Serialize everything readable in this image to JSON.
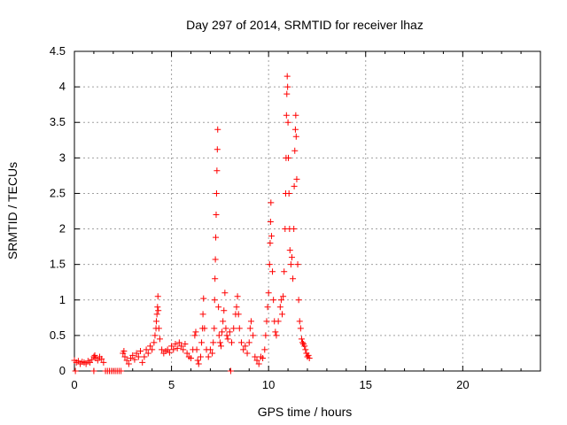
{
  "chart_data": {
    "type": "scatter",
    "title": "Day 297 of 2014, SRMTID for receiver lhaz",
    "xlabel": "GPS time / hours",
    "ylabel": "SRMTID / TECUs",
    "xlim": [
      0,
      24
    ],
    "ylim": [
      0,
      4.5
    ],
    "x_ticks": [
      0,
      5,
      10,
      15,
      20
    ],
    "y_ticks": [
      0,
      0.5,
      1,
      1.5,
      2,
      2.5,
      3,
      3.5,
      4,
      4.5
    ],
    "x_tick_labels": [
      "0",
      "5",
      "10",
      "15",
      "20"
    ],
    "y_tick_labels": [
      "0",
      "0.5",
      "1",
      "1.5",
      "2",
      "2.5",
      "3",
      "3.5",
      "4",
      "4.5"
    ],
    "grid": true,
    "marker": "+",
    "series": [
      {
        "name": "SRMTID",
        "color": "#ff0000",
        "points": [
          [
            0.0,
            0.15
          ],
          [
            0.1,
            0.12
          ],
          [
            0.2,
            0.14
          ],
          [
            0.3,
            0.1
          ],
          [
            0.4,
            0.13
          ],
          [
            0.5,
            0.12
          ],
          [
            0.6,
            0.1
          ],
          [
            0.7,
            0.14
          ],
          [
            0.8,
            0.12
          ],
          [
            0.9,
            0.16
          ],
          [
            1.0,
            0.2
          ],
          [
            1.05,
            0.22
          ],
          [
            1.1,
            0.18
          ],
          [
            1.2,
            0.15
          ],
          [
            1.3,
            0.2
          ],
          [
            1.4,
            0.17
          ],
          [
            1.5,
            0.12
          ],
          [
            0.05,
            0.0
          ],
          [
            1.0,
            0.0
          ],
          [
            1.6,
            0.0
          ],
          [
            1.7,
            0.0
          ],
          [
            1.8,
            0.0
          ],
          [
            1.9,
            0.0
          ],
          [
            2.0,
            0.0
          ],
          [
            2.1,
            0.0
          ],
          [
            2.2,
            0.0
          ],
          [
            2.3,
            0.0
          ],
          [
            2.4,
            0.0
          ],
          [
            2.5,
            0.25
          ],
          [
            2.55,
            0.28
          ],
          [
            2.6,
            0.2
          ],
          [
            2.7,
            0.15
          ],
          [
            2.8,
            0.1
          ],
          [
            2.9,
            0.18
          ],
          [
            3.0,
            0.22
          ],
          [
            3.1,
            0.16
          ],
          [
            3.2,
            0.25
          ],
          [
            3.3,
            0.2
          ],
          [
            3.4,
            0.28
          ],
          [
            3.5,
            0.12
          ],
          [
            3.6,
            0.2
          ],
          [
            3.7,
            0.3
          ],
          [
            3.8,
            0.25
          ],
          [
            3.9,
            0.35
          ],
          [
            4.0,
            0.3
          ],
          [
            4.1,
            0.4
          ],
          [
            4.15,
            0.5
          ],
          [
            4.2,
            0.6
          ],
          [
            4.22,
            0.7
          ],
          [
            4.25,
            0.8
          ],
          [
            4.28,
            0.9
          ],
          [
            4.3,
            1.05
          ],
          [
            4.32,
            0.85
          ],
          [
            4.35,
            0.6
          ],
          [
            4.4,
            0.45
          ],
          [
            4.5,
            0.3
          ],
          [
            4.6,
            0.25
          ],
          [
            4.7,
            0.28
          ],
          [
            4.8,
            0.3
          ],
          [
            4.9,
            0.26
          ],
          [
            5.0,
            0.35
          ],
          [
            5.1,
            0.3
          ],
          [
            5.2,
            0.38
          ],
          [
            5.3,
            0.32
          ],
          [
            5.4,
            0.4
          ],
          [
            5.5,
            0.35
          ],
          [
            5.6,
            0.3
          ],
          [
            5.7,
            0.38
          ],
          [
            5.8,
            0.25
          ],
          [
            5.9,
            0.2
          ],
          [
            6.0,
            0.18
          ],
          [
            6.1,
            0.3
          ],
          [
            6.2,
            0.5
          ],
          [
            6.25,
            0.55
          ],
          [
            6.3,
            0.3
          ],
          [
            6.35,
            0.15
          ],
          [
            6.4,
            0.1
          ],
          [
            6.5,
            0.2
          ],
          [
            6.55,
            0.4
          ],
          [
            6.6,
            0.6
          ],
          [
            6.62,
            0.8
          ],
          [
            6.65,
            1.02
          ],
          [
            6.7,
            0.6
          ],
          [
            6.8,
            0.3
          ],
          [
            6.9,
            0.2
          ],
          [
            7.0,
            0.3
          ],
          [
            7.1,
            0.25
          ],
          [
            7.15,
            0.4
          ],
          [
            7.2,
            0.6
          ],
          [
            7.22,
            1.0
          ],
          [
            7.24,
            1.3
          ],
          [
            7.26,
            1.57
          ],
          [
            7.28,
            1.88
          ],
          [
            7.3,
            2.2
          ],
          [
            7.32,
            2.5
          ],
          [
            7.34,
            2.82
          ],
          [
            7.36,
            3.12
          ],
          [
            7.38,
            3.4
          ],
          [
            7.42,
            0.9
          ],
          [
            7.45,
            0.5
          ],
          [
            7.5,
            0.4
          ],
          [
            7.55,
            0.35
          ],
          [
            7.6,
            0.55
          ],
          [
            7.65,
            0.7
          ],
          [
            7.7,
            0.85
          ],
          [
            7.75,
            1.1
          ],
          [
            7.8,
            0.6
          ],
          [
            7.85,
            0.5
          ],
          [
            7.9,
            0.45
          ],
          [
            8.0,
            0.55
          ],
          [
            8.05,
            0.0
          ],
          [
            8.1,
            0.4
          ],
          [
            8.2,
            0.6
          ],
          [
            8.3,
            0.8
          ],
          [
            8.35,
            0.9
          ],
          [
            8.4,
            1.05
          ],
          [
            8.45,
            0.8
          ],
          [
            8.5,
            0.6
          ],
          [
            8.6,
            0.4
          ],
          [
            8.7,
            0.3
          ],
          [
            8.8,
            0.35
          ],
          [
            8.9,
            0.25
          ],
          [
            9.0,
            0.4
          ],
          [
            9.05,
            0.6
          ],
          [
            9.1,
            0.7
          ],
          [
            9.2,
            0.5
          ],
          [
            9.3,
            0.2
          ],
          [
            9.4,
            0.15
          ],
          [
            9.5,
            0.1
          ],
          [
            9.6,
            0.2
          ],
          [
            9.7,
            0.18
          ],
          [
            9.8,
            0.3
          ],
          [
            9.85,
            0.5
          ],
          [
            9.9,
            0.7
          ],
          [
            9.95,
            0.9
          ],
          [
            10.0,
            1.1
          ],
          [
            10.05,
            1.5
          ],
          [
            10.08,
            1.8
          ],
          [
            10.1,
            2.1
          ],
          [
            10.12,
            2.37
          ],
          [
            10.15,
            1.9
          ],
          [
            10.2,
            1.4
          ],
          [
            10.25,
            1.0
          ],
          [
            10.3,
            0.7
          ],
          [
            10.35,
            0.55
          ],
          [
            10.4,
            0.5
          ],
          [
            10.5,
            0.7
          ],
          [
            10.6,
            0.9
          ],
          [
            10.65,
            1.0
          ],
          [
            10.7,
            0.8
          ],
          [
            10.75,
            1.05
          ],
          [
            10.8,
            1.4
          ],
          [
            10.85,
            2.0
          ],
          [
            10.88,
            2.5
          ],
          [
            10.9,
            3.0
          ],
          [
            10.92,
            3.6
          ],
          [
            10.94,
            3.9
          ],
          [
            10.96,
            4.15
          ],
          [
            10.98,
            4.0
          ],
          [
            11.0,
            3.5
          ],
          [
            11.02,
            3.0
          ],
          [
            11.05,
            2.5
          ],
          [
            11.08,
            2.0
          ],
          [
            11.1,
            1.7
          ],
          [
            11.15,
            1.5
          ],
          [
            11.2,
            1.6
          ],
          [
            11.25,
            1.3
          ],
          [
            11.3,
            2.0
          ],
          [
            11.32,
            2.6
          ],
          [
            11.35,
            3.1
          ],
          [
            11.38,
            3.4
          ],
          [
            11.4,
            3.6
          ],
          [
            11.42,
            3.3
          ],
          [
            11.45,
            2.7
          ],
          [
            11.5,
            1.5
          ],
          [
            11.55,
            1.0
          ],
          [
            11.6,
            0.7
          ],
          [
            11.65,
            0.6
          ],
          [
            11.7,
            0.45
          ],
          [
            11.75,
            0.4
          ],
          [
            11.8,
            0.38
          ],
          [
            11.85,
            0.35
          ],
          [
            11.9,
            0.3
          ],
          [
            11.95,
            0.25
          ],
          [
            12.0,
            0.2
          ],
          [
            12.05,
            0.22
          ],
          [
            12.1,
            0.18
          ]
        ]
      }
    ]
  }
}
